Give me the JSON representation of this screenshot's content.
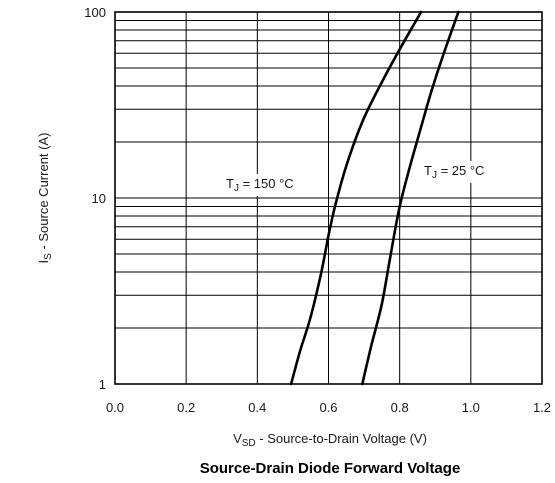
{
  "chart_data": {
    "type": "line",
    "title": "Source-Drain Diode Forward Voltage",
    "xlabel": {
      "main": "V",
      "sub": "SD",
      "rest": " - Source-to-Drain Voltage (V)"
    },
    "ylabel": {
      "main": "I",
      "sub": "S",
      "rest": " - Source Current (A)"
    },
    "xlim": [
      0.0,
      1.2
    ],
    "ylim": [
      1,
      100
    ],
    "y_scale": "log",
    "grid": true,
    "x_ticks": [
      "0.0",
      "0.2",
      "0.4",
      "0.6",
      "0.8",
      "1.0",
      "1.2"
    ],
    "y_ticks": [
      "1",
      "10",
      "100"
    ],
    "series": [
      {
        "label": {
          "main": "T",
          "sub": "J",
          "rest": " = 150 °C"
        },
        "points": [
          [
            0.495,
            1
          ],
          [
            0.52,
            1.5
          ],
          [
            0.55,
            2.3
          ],
          [
            0.58,
            4
          ],
          [
            0.605,
            7
          ],
          [
            0.63,
            11
          ],
          [
            0.66,
            17
          ],
          [
            0.7,
            27
          ],
          [
            0.75,
            42
          ],
          [
            0.8,
            63
          ],
          [
            0.86,
            100
          ]
        ]
      },
      {
        "label": {
          "main": "T",
          "sub": "J",
          "rest": " = 25 °C"
        },
        "points": [
          [
            0.695,
            1
          ],
          [
            0.72,
            1.6
          ],
          [
            0.75,
            2.7
          ],
          [
            0.775,
            5
          ],
          [
            0.8,
            9
          ],
          [
            0.83,
            15
          ],
          [
            0.86,
            24
          ],
          [
            0.89,
            38
          ],
          [
            0.92,
            57
          ],
          [
            0.965,
            100
          ]
        ]
      }
    ]
  }
}
